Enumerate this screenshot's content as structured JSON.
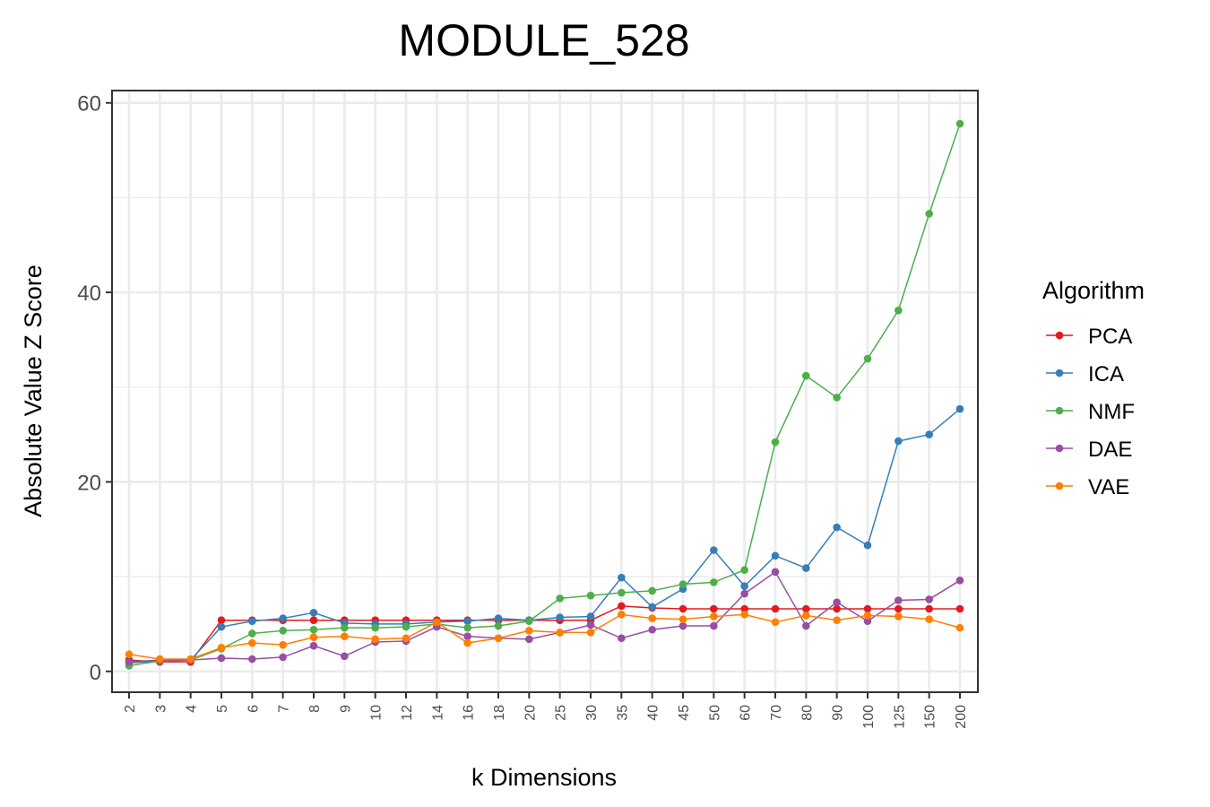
{
  "chart_data": {
    "type": "line",
    "title": "MODULE_528",
    "xlabel": "k Dimensions",
    "ylabel": "Absolute Value Z Score",
    "ylim": [
      -2.2,
      61.3
    ],
    "yticks": [
      0,
      20,
      40,
      60
    ],
    "grid": true,
    "legend_position": "right",
    "legend_title": "Algorithm",
    "categories": [
      "2",
      "3",
      "4",
      "5",
      "6",
      "7",
      "8",
      "9",
      "10",
      "12",
      "14",
      "16",
      "18",
      "20",
      "25",
      "30",
      "35",
      "40",
      "45",
      "50",
      "60",
      "70",
      "80",
      "90",
      "100",
      "125",
      "150",
      "200"
    ],
    "series": [
      {
        "name": "PCA",
        "color": "#e41a1c",
        "values": [
          1.2,
          1.0,
          1.0,
          5.4,
          5.4,
          5.4,
          5.4,
          5.4,
          5.4,
          5.4,
          5.4,
          5.4,
          5.4,
          5.4,
          5.4,
          5.4,
          6.9,
          6.7,
          6.6,
          6.6,
          6.6,
          6.6,
          6.6,
          6.6,
          6.6,
          6.6,
          6.6,
          6.6
        ]
      },
      {
        "name": "ICA",
        "color": "#377eb8",
        "values": [
          0.9,
          1.1,
          1.2,
          4.7,
          5.3,
          5.6,
          6.2,
          5.1,
          5.0,
          5.0,
          5.2,
          5.3,
          5.6,
          5.4,
          5.7,
          5.8,
          9.9,
          6.8,
          8.7,
          12.8,
          9.0,
          12.2,
          10.9,
          15.2,
          13.3,
          24.3,
          25.0,
          27.7
        ]
      },
      {
        "name": "NMF",
        "color": "#4daf4a",
        "values": [
          0.6,
          1.1,
          1.2,
          2.4,
          4.0,
          4.3,
          4.4,
          4.6,
          4.6,
          4.7,
          5.0,
          4.6,
          4.8,
          5.3,
          7.7,
          8.0,
          8.3,
          8.5,
          9.2,
          9.4,
          10.7,
          24.2,
          31.2,
          28.9,
          33.0,
          38.1,
          48.3,
          57.8
        ]
      },
      {
        "name": "DAE",
        "color": "#984ea3",
        "values": [
          1.0,
          1.2,
          1.2,
          1.4,
          1.3,
          1.5,
          2.7,
          1.6,
          3.1,
          3.2,
          4.7,
          3.7,
          3.5,
          3.4,
          4.1,
          4.9,
          3.5,
          4.4,
          4.8,
          4.8,
          8.2,
          10.5,
          4.8,
          7.3,
          5.3,
          7.5,
          7.6,
          9.6
        ]
      },
      {
        "name": "VAE",
        "color": "#ff7f00",
        "values": [
          1.8,
          1.3,
          1.3,
          2.5,
          3.0,
          2.8,
          3.6,
          3.7,
          3.4,
          3.5,
          5.2,
          3.0,
          3.5,
          4.3,
          4.1,
          4.1,
          6.0,
          5.6,
          5.5,
          5.8,
          6.0,
          5.2,
          5.9,
          5.4,
          5.9,
          5.8,
          5.5,
          4.6
        ]
      }
    ]
  }
}
